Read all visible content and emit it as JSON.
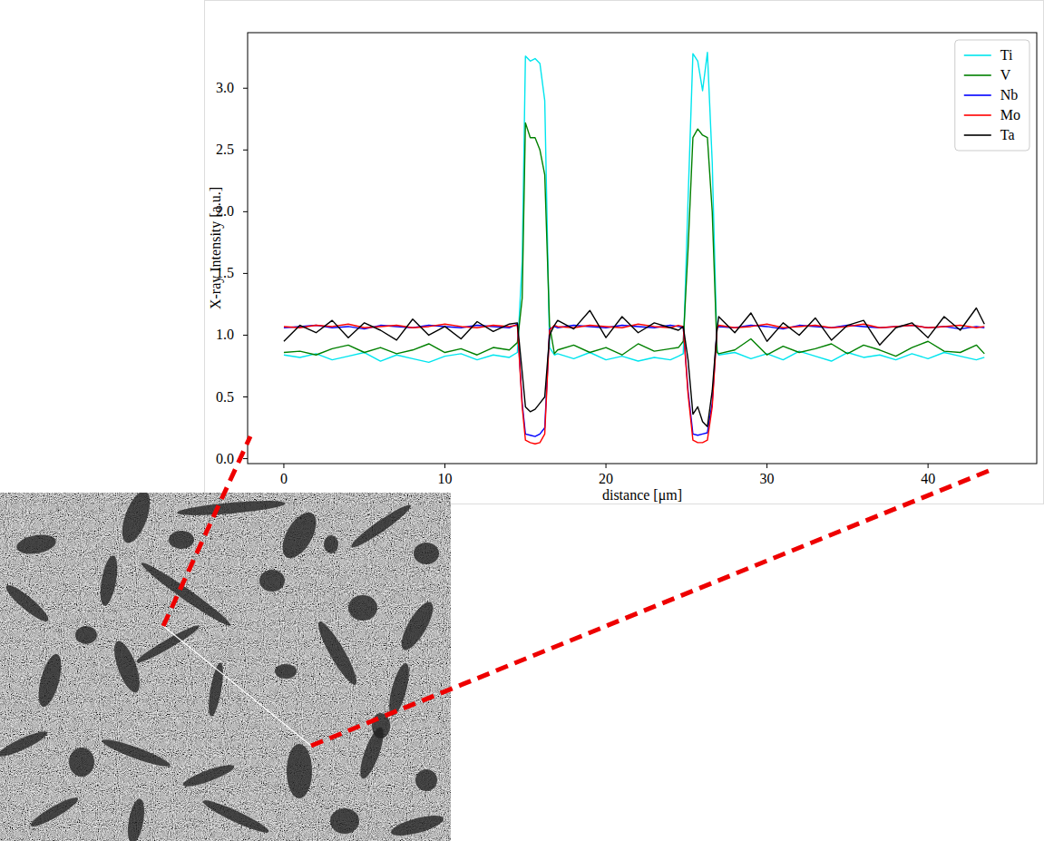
{
  "chart_data": {
    "type": "line",
    "xlabel": "distance [μm]",
    "ylabel": "X-ray Intensity [a.u.]",
    "x": [
      0,
      1,
      2,
      3,
      4,
      5,
      6,
      7,
      8,
      9,
      10,
      11,
      12,
      13,
      14,
      14.5,
      14.8,
      15.0,
      15.3,
      15.6,
      15.9,
      16.2,
      16.5,
      16.8,
      17,
      18,
      19,
      20,
      21,
      22,
      23,
      24,
      24.5,
      24.8,
      25.1,
      25.4,
      25.7,
      26.0,
      26.3,
      26.6,
      26.9,
      27,
      28,
      29,
      30,
      31,
      32,
      33,
      34,
      35,
      36,
      37,
      38,
      39,
      40,
      41,
      42,
      43,
      43.5
    ],
    "series": [
      {
        "name": "Ti",
        "color": "#00e5ee",
        "values": [
          0.84,
          0.82,
          0.85,
          0.8,
          0.83,
          0.86,
          0.79,
          0.84,
          0.81,
          0.78,
          0.83,
          0.85,
          0.8,
          0.84,
          0.82,
          0.86,
          1.6,
          3.26,
          3.22,
          3.24,
          3.2,
          2.9,
          0.9,
          0.84,
          0.85,
          0.81,
          0.86,
          0.8,
          0.83,
          0.79,
          0.82,
          0.8,
          0.83,
          0.85,
          2.1,
          3.28,
          3.22,
          2.98,
          3.29,
          2.4,
          0.88,
          0.84,
          0.86,
          0.81,
          0.85,
          0.8,
          0.87,
          0.83,
          0.79,
          0.86,
          0.82,
          0.84,
          0.8,
          0.85,
          0.81,
          0.86,
          0.83,
          0.8,
          0.82
        ]
      },
      {
        "name": "V",
        "color": "#008000",
        "values": [
          0.86,
          0.87,
          0.84,
          0.89,
          0.92,
          0.86,
          0.9,
          0.85,
          0.88,
          0.93,
          0.86,
          0.89,
          0.84,
          0.9,
          0.88,
          0.94,
          1.3,
          2.72,
          2.6,
          2.6,
          2.5,
          2.3,
          1.08,
          0.85,
          0.88,
          0.92,
          0.86,
          0.9,
          0.84,
          0.93,
          0.87,
          0.89,
          0.9,
          0.95,
          1.7,
          2.6,
          2.67,
          2.62,
          2.6,
          2.0,
          0.86,
          0.85,
          0.88,
          0.97,
          0.84,
          0.91,
          0.86,
          0.89,
          0.93,
          0.85,
          0.92,
          0.88,
          0.83,
          0.9,
          0.95,
          0.87,
          0.86,
          0.92,
          0.85
        ]
      },
      {
        "name": "Nb",
        "color": "#0000ff",
        "values": [
          1.06,
          1.07,
          1.08,
          1.06,
          1.07,
          1.05,
          1.08,
          1.07,
          1.06,
          1.08,
          1.07,
          1.06,
          1.08,
          1.07,
          1.06,
          1.09,
          0.45,
          0.2,
          0.19,
          0.18,
          0.2,
          0.25,
          1.05,
          1.07,
          1.06,
          1.08,
          1.07,
          1.06,
          1.08,
          1.07,
          1.06,
          1.08,
          1.07,
          1.06,
          0.55,
          0.2,
          0.19,
          0.2,
          0.21,
          0.45,
          1.06,
          1.07,
          1.06,
          1.08,
          1.07,
          1.05,
          1.08,
          1.07,
          1.06,
          1.08,
          1.07,
          1.06,
          1.07,
          1.08,
          1.06,
          1.07,
          1.05,
          1.07,
          1.06
        ]
      },
      {
        "name": "Mo",
        "color": "#ff0000",
        "values": [
          1.07,
          1.06,
          1.08,
          1.07,
          1.09,
          1.06,
          1.07,
          1.08,
          1.06,
          1.07,
          1.09,
          1.07,
          1.06,
          1.08,
          1.07,
          1.08,
          0.42,
          0.15,
          0.13,
          0.12,
          0.13,
          0.2,
          1.04,
          1.08,
          1.07,
          1.06,
          1.08,
          1.07,
          1.06,
          1.09,
          1.07,
          1.06,
          1.08,
          1.07,
          0.52,
          0.15,
          0.13,
          0.13,
          0.15,
          0.42,
          1.05,
          1.08,
          1.06,
          1.07,
          1.09,
          1.06,
          1.07,
          1.08,
          1.06,
          1.07,
          1.09,
          1.06,
          1.07,
          1.08,
          1.06,
          1.07,
          1.08,
          1.06,
          1.07
        ]
      },
      {
        "name": "Ta",
        "color": "#000000",
        "values": [
          0.95,
          1.08,
          1.02,
          1.12,
          0.98,
          1.1,
          1.04,
          0.96,
          1.13,
          1.0,
          1.07,
          0.97,
          1.11,
          1.03,
          1.09,
          1.1,
          0.7,
          0.42,
          0.38,
          0.4,
          0.45,
          0.5,
          1.0,
          1.08,
          1.12,
          1.05,
          1.2,
          0.98,
          1.15,
          1.02,
          1.1,
          1.06,
          1.04,
          1.07,
          0.8,
          0.36,
          0.42,
          0.3,
          0.26,
          0.55,
          1.05,
          1.15,
          1.02,
          1.18,
          0.95,
          1.1,
          1.0,
          1.14,
          0.96,
          1.08,
          1.12,
          0.92,
          1.06,
          1.1,
          0.98,
          1.15,
          1.04,
          1.22,
          1.09
        ]
      }
    ],
    "xlim": [
      -2.25,
      46.75
    ],
    "ylim": [
      -0.04,
      3.45
    ],
    "xticks": [
      0,
      10,
      20,
      30,
      40
    ],
    "yticks": [
      {
        "value": 0,
        "label": "0.0"
      },
      {
        "value": 0.5,
        "label": "0.5"
      },
      {
        "value": 1,
        "label": "1.0"
      },
      {
        "value": 1.5,
        "label": "1.5"
      },
      {
        "value": 2,
        "label": "2.0"
      },
      {
        "value": 2.5,
        "label": "2.5"
      },
      {
        "value": 3,
        "label": "3.0"
      }
    ],
    "grid": false,
    "legend": "upper right"
  }
}
